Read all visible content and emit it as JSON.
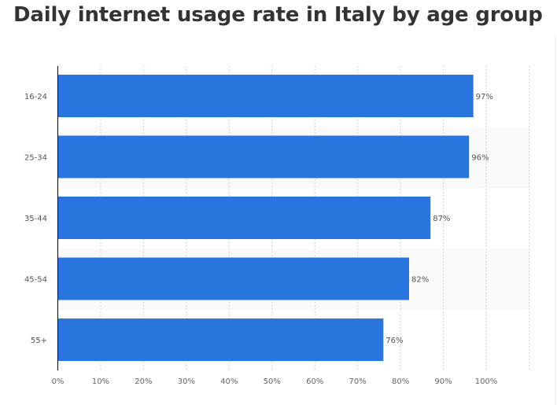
{
  "chart_data": {
    "type": "bar",
    "orientation": "horizontal",
    "title": "Daily internet usage rate in Italy by age group",
    "categories": [
      "16-24",
      "25-34",
      "35-44",
      "45-54",
      "55+"
    ],
    "values": [
      97,
      96,
      87,
      82,
      76
    ],
    "data_labels": [
      "97%",
      "96%",
      "87%",
      "82%",
      "76%"
    ],
    "xlim": [
      0,
      110
    ],
    "x_ticks": [
      0,
      10,
      20,
      30,
      40,
      50,
      60,
      70,
      80,
      90,
      100
    ],
    "x_tick_labels": [
      "0%",
      "10%",
      "20%",
      "30%",
      "40%",
      "50%",
      "60%",
      "70%",
      "80%",
      "90%",
      "100%"
    ],
    "xlabel": "",
    "ylabel": "",
    "grid": "vertical dotted",
    "colors": {
      "bar": "#2876dd",
      "band": "#f9f9f9",
      "text": "#555555",
      "title": "#333333"
    }
  }
}
